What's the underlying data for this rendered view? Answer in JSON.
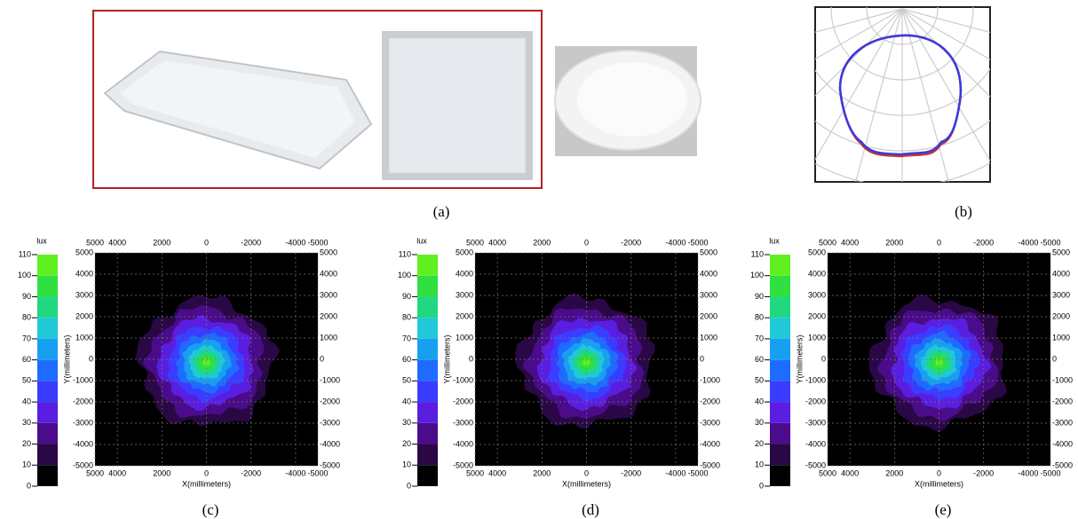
{
  "figure": {
    "top_captions": [
      "(a)",
      "(b)"
    ],
    "maps": [
      {
        "caption": "(c)",
        "unit": "lux",
        "colorbar_ticks": [
          0,
          10,
          20,
          30,
          40,
          50,
          60,
          70,
          80,
          90,
          100,
          110
        ],
        "colorbar_colors": [
          "#000000",
          "#2a0845",
          "#4a0c8a",
          "#5a1ee0",
          "#3a3cff",
          "#1e6cff",
          "#18a0f0",
          "#20c8d8",
          "#20d880",
          "#30e040",
          "#60f020"
        ],
        "xticks": [
          5000,
          4000,
          2000,
          0,
          -2000,
          -4000,
          -5000
        ],
        "yticks": [
          5000,
          4000,
          3000,
          2000,
          1000,
          0,
          -1000,
          -2000,
          -3000,
          -4000,
          -5000
        ],
        "xlabel": "X(millimeters)",
        "ylabel": "Y(millimeters)"
      },
      {
        "caption": "(d)",
        "unit": "lux",
        "colorbar_ticks": [
          0,
          10,
          20,
          30,
          40,
          50,
          60,
          70,
          80,
          90,
          100,
          110
        ],
        "colorbar_colors": [
          "#000000",
          "#2a0845",
          "#4a0c8a",
          "#5a1ee0",
          "#3a3cff",
          "#1e6cff",
          "#18a0f0",
          "#20c8d8",
          "#20d880",
          "#30e040",
          "#60f020"
        ],
        "xticks": [
          5000,
          4000,
          2000,
          0,
          -2000,
          -4000,
          -5000
        ],
        "yticks": [
          5000,
          4000,
          3000,
          2000,
          1000,
          0,
          -1000,
          -2000,
          -3000,
          -4000,
          -5000
        ],
        "xlabel": "X(millimeters)",
        "ylabel": "Y(millimeters)"
      },
      {
        "caption": "(e)",
        "unit": "lux",
        "colorbar_ticks": [
          0,
          10,
          20,
          30,
          40,
          50,
          60,
          70,
          80,
          90,
          100,
          110
        ],
        "colorbar_colors": [
          "#000000",
          "#2a0845",
          "#4a0c8a",
          "#5a1ee0",
          "#3a3cff",
          "#1e6cff",
          "#18a0f0",
          "#20c8d8",
          "#20d880",
          "#30e040",
          "#60f020"
        ],
        "xticks": [
          5000,
          4000,
          2000,
          0,
          -2000,
          -4000,
          -5000
        ],
        "yticks": [
          5000,
          4000,
          3000,
          2000,
          1000,
          0,
          -1000,
          -2000,
          -3000,
          -4000,
          -5000
        ],
        "xlabel": "X(millimeters)",
        "ylabel": "Y(millimeters)"
      }
    ]
  }
}
